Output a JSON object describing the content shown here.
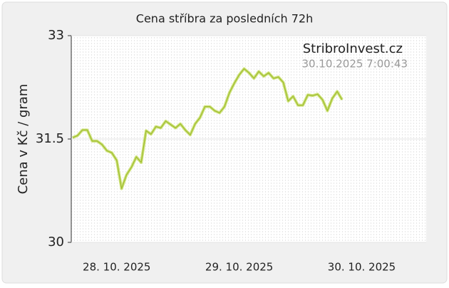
{
  "chart_data": {
    "type": "line",
    "title": "Cena stříbra za posledních 72h",
    "y_label": "Cena v Kč / gram",
    "annotations": [
      "StribroInvest.cz",
      "30.10.2025 7:00:43"
    ],
    "categories": [
      null,
      null,
      null,
      null,
      null,
      null,
      null,
      null,
      null,
      null,
      "28. 10. 2025",
      null,
      null,
      null,
      null,
      null,
      null,
      null,
      null,
      null,
      null,
      null,
      null,
      null,
      null,
      null,
      null,
      null,
      null,
      null,
      null,
      null,
      null,
      null,
      null,
      "29. 10. 2025",
      null,
      null,
      null,
      null,
      null,
      null,
      null,
      null,
      null,
      null,
      null,
      null,
      null,
      null,
      null,
      null,
      null,
      null,
      null,
      null,
      null,
      null,
      null,
      null,
      "30. 10. 2025",
      null,
      null,
      null,
      null,
      null,
      null,
      null,
      null,
      null,
      null,
      null
    ],
    "series": [
      {
        "name": "Cena",
        "color": "#c3dc5a",
        "values": [
          null,
          31.52,
          31.55,
          31.63,
          31.63,
          31.47,
          31.47,
          31.42,
          31.33,
          31.3,
          31.19,
          30.78,
          30.98,
          31.09,
          31.24,
          31.16,
          31.62,
          31.57,
          31.68,
          31.66,
          31.76,
          31.71,
          31.66,
          31.72,
          31.63,
          31.56,
          31.72,
          31.81,
          31.97,
          31.97,
          31.91,
          31.88,
          31.97,
          32.17,
          32.31,
          32.43,
          32.52,
          32.46,
          32.38,
          32.48,
          32.41,
          32.46,
          32.38,
          32.4,
          32.32,
          32.05,
          32.12,
          31.99,
          31.99,
          32.14,
          32.13,
          32.15,
          32.07,
          31.91,
          32.09,
          32.19,
          32.07,
          null,
          null,
          null,
          null,
          null,
          null,
          null,
          null,
          null,
          null,
          null,
          null,
          null,
          null,
          null
        ]
      }
    ],
    "ylim": [
      30,
      33
    ],
    "yticks": [
      30,
      31.5,
      33
    ],
    "grid": true
  }
}
